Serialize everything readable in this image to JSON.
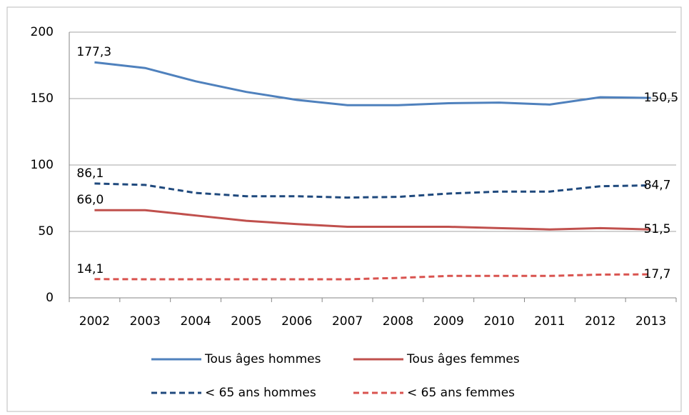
{
  "chart_data": {
    "type": "line",
    "categories": [
      "2002",
      "2003",
      "2004",
      "2005",
      "2006",
      "2007",
      "2008",
      "2009",
      "2010",
      "2011",
      "2012",
      "2013"
    ],
    "series": [
      {
        "name": "Tous âges hommes",
        "color": "#4f81bd",
        "dash": false,
        "values": [
          177.3,
          173,
          163,
          155,
          149,
          145,
          145,
          146.5,
          147,
          145.5,
          151,
          150.5
        ],
        "value_labels": [
          "177,3",
          null,
          null,
          null,
          null,
          null,
          null,
          null,
          null,
          null,
          null,
          "150,5"
        ]
      },
      {
        "name": "Tous âges femmes",
        "color": "#c0504d",
        "dash": false,
        "values": [
          66.0,
          66,
          62,
          58,
          55.5,
          53.5,
          53.5,
          53.5,
          52.5,
          51.5,
          52.5,
          51.5
        ],
        "value_labels": [
          "66,0",
          null,
          null,
          null,
          null,
          null,
          null,
          null,
          null,
          null,
          null,
          "51,5"
        ]
      },
      {
        "name": "< 65 ans hommes",
        "color": "#1f497d",
        "dash": true,
        "values": [
          86.1,
          85,
          79,
          76.5,
          76.5,
          75.5,
          76,
          78.5,
          80,
          80,
          84,
          84.7
        ],
        "value_labels": [
          "86,1",
          null,
          null,
          null,
          null,
          null,
          null,
          null,
          null,
          null,
          null,
          "84,7"
        ]
      },
      {
        "name": "< 65 ans femmes",
        "color": "#d9534f",
        "dash": true,
        "values": [
          14.1,
          14,
          14,
          14,
          14,
          14,
          15,
          16.5,
          16.5,
          16.5,
          17.5,
          17.7
        ],
        "value_labels": [
          "14,1",
          null,
          null,
          null,
          null,
          null,
          null,
          null,
          null,
          null,
          null,
          "17,7"
        ]
      }
    ],
    "ylim": [
      0,
      200
    ],
    "yticks": [
      0,
      50,
      100,
      150,
      200
    ],
    "grid": true
  }
}
